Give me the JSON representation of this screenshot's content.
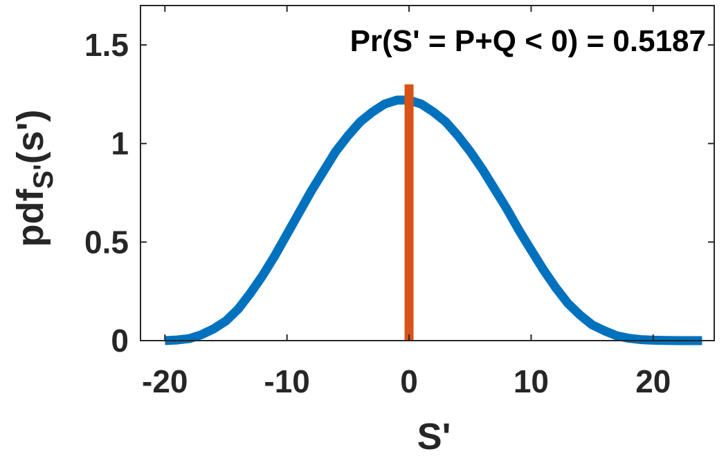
{
  "chart_data": {
    "type": "line",
    "title": "",
    "xlabel": "S'",
    "ylabel": {
      "main": "pdf",
      "subscript": "S'",
      "suffix": "(s')"
    },
    "annotation": "Pr(S' = P+Q < 0) = 0.5187",
    "xlim": [
      -22,
      25
    ],
    "ylim": [
      0,
      1.7
    ],
    "xticks": [
      -20,
      -10,
      0,
      10,
      20
    ],
    "xtick_labels": [
      "-20",
      "-10",
      "0",
      "10",
      "20"
    ],
    "yticks": [
      0,
      0.5,
      1,
      1.5
    ],
    "ytick_labels": [
      "0",
      "0.5",
      "1",
      "1.5"
    ],
    "grid": false,
    "legend": "none",
    "series": [
      {
        "kind": "curve",
        "color": "#0072BD",
        "x": [
          -20,
          -19,
          -18,
          -17,
          -16,
          -15,
          -14,
          -13,
          -12,
          -11,
          -10,
          -9,
          -8,
          -7,
          -6,
          -5,
          -4,
          -3,
          -2,
          -1,
          0,
          1,
          2,
          3,
          4,
          5,
          6,
          7,
          8,
          9,
          10,
          11,
          12,
          13,
          14,
          15,
          16,
          17,
          18,
          19,
          20,
          21,
          22,
          23,
          24
        ],
        "y": [
          0.0,
          0.003,
          0.01,
          0.03,
          0.06,
          0.1,
          0.16,
          0.24,
          0.33,
          0.43,
          0.54,
          0.65,
          0.76,
          0.86,
          0.96,
          1.04,
          1.11,
          1.16,
          1.2,
          1.22,
          1.22,
          1.2,
          1.16,
          1.11,
          1.04,
          0.96,
          0.87,
          0.77,
          0.67,
          0.56,
          0.46,
          0.36,
          0.27,
          0.19,
          0.13,
          0.08,
          0.05,
          0.025,
          0.012,
          0.005,
          0.002,
          0.001,
          0.0,
          0.0,
          0.0
        ]
      },
      {
        "kind": "vertical-line",
        "color": "#D95319",
        "x": 0,
        "y": [
          0,
          1.3
        ]
      }
    ]
  }
}
